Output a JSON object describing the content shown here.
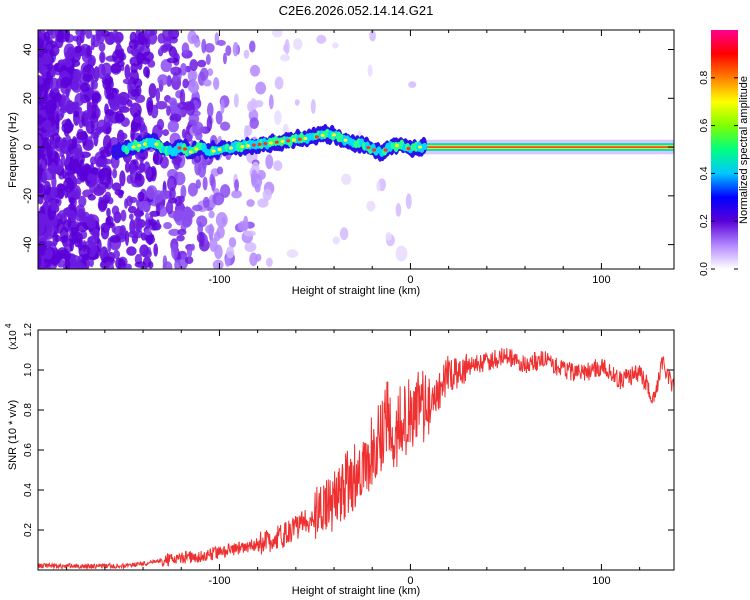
{
  "title": "C2E6.2026.052.14.14.G21",
  "chart_data": [
    {
      "type": "heatmap",
      "title": "C2E6.2026.052.14.14.G21",
      "xlabel": "Height of straight line (km)",
      "ylabel": "Frequency (Hz)",
      "xlim": [
        -195,
        138
      ],
      "ylim": [
        -50,
        48
      ],
      "xticks": [
        -100,
        0,
        100
      ],
      "yticks": [
        -40,
        -20,
        0,
        20,
        40
      ],
      "series": [
        {
          "name": "dominant frequency ridge (Hz)",
          "x": [
            -155,
            -145,
            -140,
            -135,
            -130,
            -125,
            -120,
            -115,
            -110,
            -105,
            -100,
            -90,
            -80,
            -70,
            -60,
            -50,
            -45,
            -40,
            -35,
            -30,
            -25,
            -20,
            -15,
            -10,
            -5,
            0,
            5,
            10,
            20,
            40,
            60,
            80,
            100,
            120,
            138
          ],
          "y": [
            -2,
            0,
            1,
            2,
            0,
            -2,
            0,
            -2,
            0,
            -2,
            -1,
            0,
            1,
            2,
            3,
            4,
            5,
            5,
            3,
            2,
            1,
            -1,
            -2,
            0,
            1,
            -1,
            0,
            0,
            0,
            0,
            0,
            0,
            0,
            0,
            0
          ]
        }
      ],
      "colorbar": {
        "label": "Normalized spectral amplitude",
        "range": [
          0.0,
          1.0
        ],
        "ticks": [
          0.0,
          0.2,
          0.4,
          0.6,
          0.8
        ],
        "colors": [
          "#ffffff",
          "#b388ff",
          "#5a00d8",
          "#0000ff",
          "#00c8ff",
          "#00ff80",
          "#80ff00",
          "#ffff00",
          "#ff8000",
          "#ff0000",
          "#ff0090"
        ]
      }
    },
    {
      "type": "line",
      "xlabel": "Height of straight line (km)",
      "ylabel": "SNR (10 * v/v)",
      "yscale_label": "(x10",
      "yscale_exponent": "4",
      "xlim": [
        -195,
        138
      ],
      "ylim": [
        0,
        1.2
      ],
      "xticks": [
        -100,
        0,
        100
      ],
      "yticks": [
        0.2,
        0.4,
        0.6,
        0.8,
        1.0,
        1.2
      ],
      "color": "#ee3030",
      "series": [
        {
          "name": "SNR",
          "x": [
            -195,
            -170,
            -150,
            -140,
            -130,
            -120,
            -110,
            -100,
            -90,
            -80,
            -70,
            -60,
            -50,
            -40,
            -35,
            -30,
            -25,
            -20,
            -15,
            -13,
            -10,
            -5,
            0,
            5,
            10,
            15,
            20,
            25,
            30,
            40,
            50,
            60,
            70,
            80,
            90,
            100,
            110,
            120,
            128,
            132,
            138
          ],
          "y": [
            0.02,
            0.02,
            0.02,
            0.03,
            0.05,
            0.06,
            0.07,
            0.09,
            0.11,
            0.13,
            0.16,
            0.21,
            0.27,
            0.34,
            0.4,
            0.46,
            0.5,
            0.6,
            0.68,
            0.8,
            0.7,
            0.72,
            0.78,
            0.8,
            0.82,
            0.9,
            0.98,
            0.98,
            1.02,
            1.04,
            1.07,
            1.03,
            1.05,
            1.0,
            0.98,
            1.02,
            0.95,
            0.99,
            0.85,
            1.05,
            0.9
          ]
        }
      ]
    }
  ]
}
